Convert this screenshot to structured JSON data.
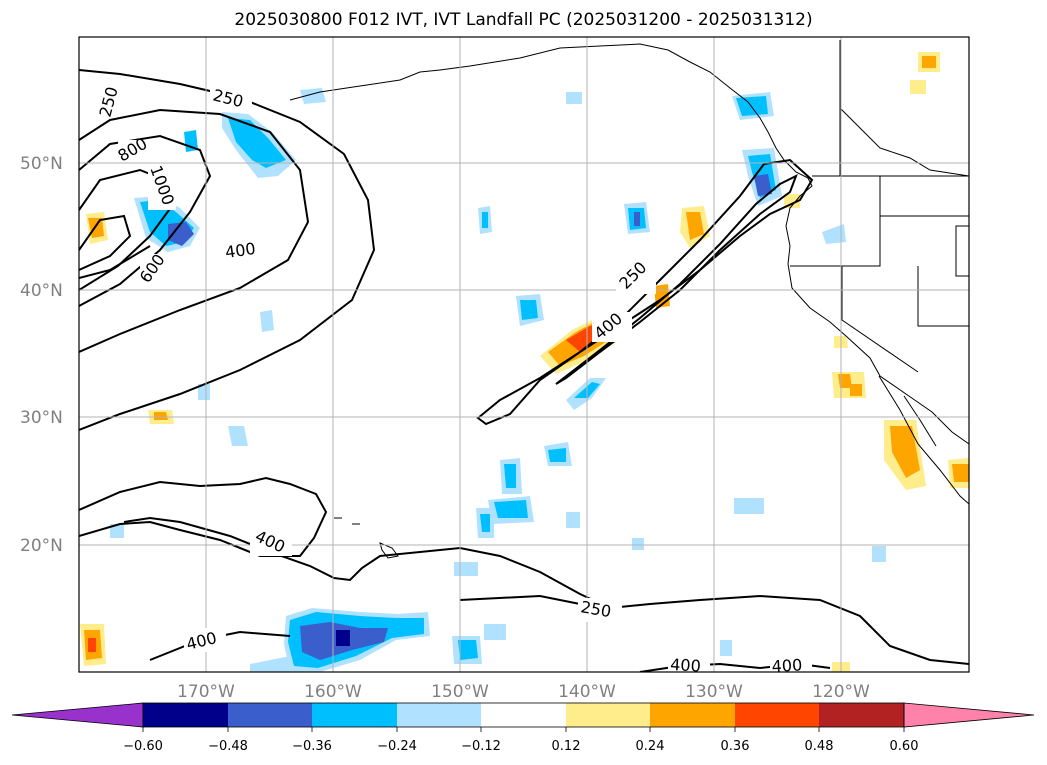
{
  "title": "2025030800 F012 IVT, IVT Landfall PC (2025031200 - 2025031312)",
  "map": {
    "lon_range": [
      -180,
      -110
    ],
    "lat_range": [
      10,
      60
    ],
    "lon_ticks": [
      {
        "lon": -170,
        "label": "170°W"
      },
      {
        "lon": -160,
        "label": "160°W"
      },
      {
        "lon": -150,
        "label": "150°W"
      },
      {
        "lon": -140,
        "label": "140°W"
      },
      {
        "lon": -130,
        "label": "130°W"
      },
      {
        "lon": -120,
        "label": "120°W"
      }
    ],
    "lat_ticks": [
      {
        "lat": 50,
        "label": "50°N"
      },
      {
        "lat": 40,
        "label": "40°N"
      },
      {
        "lat": 30,
        "label": "30°N"
      },
      {
        "lat": 20,
        "label": "20°N"
      }
    ],
    "grid": true,
    "contour_labels": [
      "250",
      "800",
      "1000",
      "600",
      "400",
      "250",
      "250",
      "400",
      "400",
      "250",
      "400",
      "400",
      "400"
    ]
  },
  "colorbar": {
    "colors": [
      "#9932cc",
      "#00008b",
      "#3a5fcd",
      "#00bfff",
      "#b0e2ff",
      "#ffffff",
      "#ffec8b",
      "#ffa500",
      "#ff4500",
      "#b22222",
      "#ff82ab"
    ],
    "labels": [
      "−0.60",
      "−0.48",
      "−0.36",
      "−0.24",
      "−0.12",
      "0.12",
      "0.24",
      "0.36",
      "0.48",
      "0.60"
    ]
  }
}
